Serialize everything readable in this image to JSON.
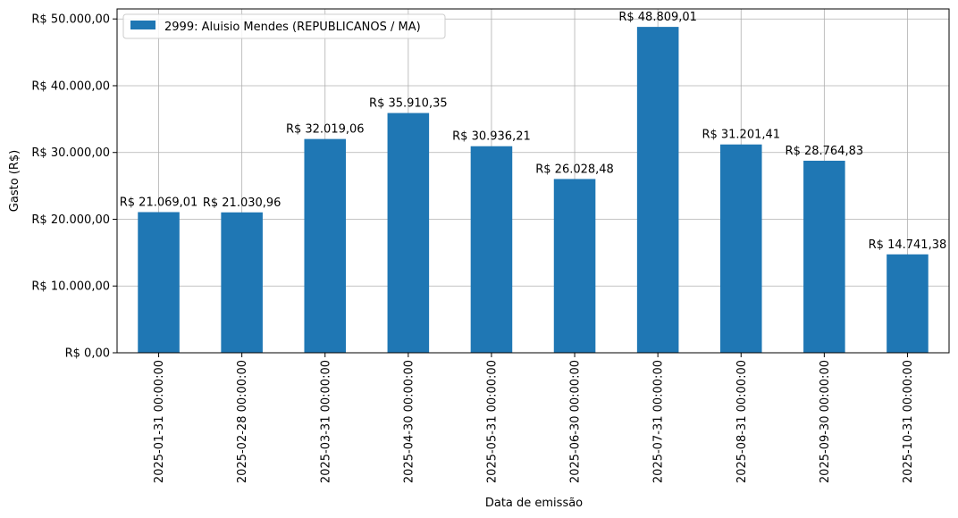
{
  "chart_data": {
    "type": "bar",
    "xlabel": "Data de emissão",
    "ylabel": "Gasto (R$)",
    "ylim": [
      0,
      51500
    ],
    "grid": true,
    "legend_position": "top-left",
    "bar_color": "#1f77b4",
    "categories": [
      "2025-01-31 00:00:00",
      "2025-02-28 00:00:00",
      "2025-03-31 00:00:00",
      "2025-04-30 00:00:00",
      "2025-05-31 00:00:00",
      "2025-06-30 00:00:00",
      "2025-07-31 00:00:00",
      "2025-08-31 00:00:00",
      "2025-09-30 00:00:00",
      "2025-10-31 00:00:00"
    ],
    "series": [
      {
        "name": "2999: Aluisio Mendes (REPUBLICANOS / MA)",
        "values": [
          21069.01,
          21030.96,
          32019.06,
          35910.35,
          30936.21,
          26028.48,
          48809.01,
          31201.41,
          28764.83,
          14741.38
        ],
        "value_labels": [
          "R$ 21.069,01",
          "R$ 21.030,96",
          "R$ 32.019,06",
          "R$ 35.910,35",
          "R$ 30.936,21",
          "R$ 26.028,48",
          "R$ 48.809,01",
          "R$ 31.201,41",
          "R$ 28.764,83",
          "R$ 14.741,38"
        ]
      }
    ],
    "y_ticks": [
      0,
      10000,
      20000,
      30000,
      40000,
      50000
    ],
    "y_tick_labels": [
      "R$ 0,00",
      "R$ 10.000,00",
      "R$ 20.000,00",
      "R$ 30.000,00",
      "R$ 40.000,00",
      "R$ 50.000,00"
    ]
  }
}
